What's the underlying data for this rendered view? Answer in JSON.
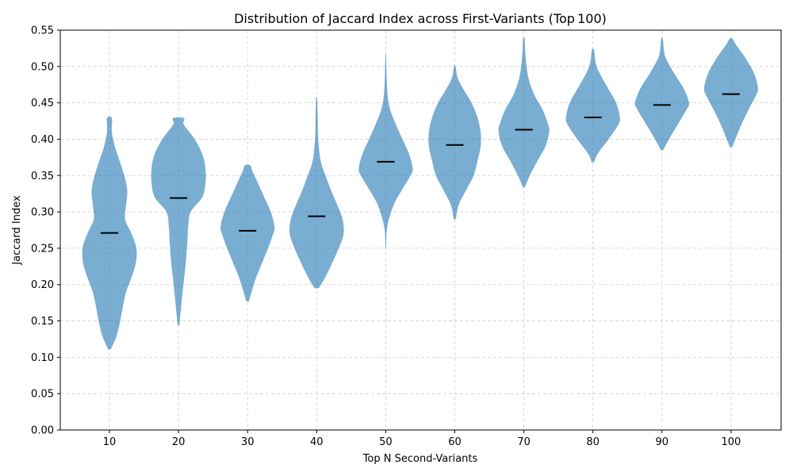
{
  "chart_data": {
    "type": "violin",
    "title": "Distribution of Jaccard Index across First-Variants (Top 100)",
    "xlabel": "Top N Second-Variants",
    "ylabel": "Jaccard Index",
    "ylim": [
      0,
      0.55
    ],
    "yticks": [
      "0.00",
      "0.05",
      "0.10",
      "0.15",
      "0.20",
      "0.25",
      "0.30",
      "0.35",
      "0.40",
      "0.45",
      "0.50",
      "0.55"
    ],
    "grid": true,
    "color": "#1f77b4",
    "categories": [
      "10",
      "20",
      "30",
      "40",
      "50",
      "60",
      "70",
      "80",
      "90",
      "100"
    ],
    "violins": [
      {
        "category": "10",
        "min": 0.111,
        "max": 0.429,
        "median": 0.271,
        "profile": [
          [
            0.111,
            0.05
          ],
          [
            0.13,
            0.27
          ],
          [
            0.15,
            0.4
          ],
          [
            0.17,
            0.5
          ],
          [
            0.19,
            0.62
          ],
          [
            0.21,
            0.82
          ],
          [
            0.23,
            0.98
          ],
          [
            0.25,
            1.0
          ],
          [
            0.27,
            0.82
          ],
          [
            0.29,
            0.58
          ],
          [
            0.31,
            0.62
          ],
          [
            0.33,
            0.66
          ],
          [
            0.35,
            0.55
          ],
          [
            0.37,
            0.38
          ],
          [
            0.39,
            0.2
          ],
          [
            0.41,
            0.09
          ],
          [
            0.429,
            0.09
          ]
        ]
      },
      {
        "category": "20",
        "min": 0.144,
        "max": 0.429,
        "median": 0.319,
        "profile": [
          [
            0.144,
            0.03
          ],
          [
            0.17,
            0.1
          ],
          [
            0.2,
            0.18
          ],
          [
            0.23,
            0.27
          ],
          [
            0.26,
            0.33
          ],
          [
            0.28,
            0.36
          ],
          [
            0.3,
            0.45
          ],
          [
            0.32,
            0.88
          ],
          [
            0.34,
            1.0
          ],
          [
            0.36,
            1.0
          ],
          [
            0.38,
            0.88
          ],
          [
            0.4,
            0.6
          ],
          [
            0.42,
            0.2
          ],
          [
            0.429,
            0.2
          ]
        ]
      },
      {
        "category": "30",
        "min": 0.177,
        "max": 0.364,
        "median": 0.274,
        "profile": [
          [
            0.177,
            0.05
          ],
          [
            0.19,
            0.15
          ],
          [
            0.21,
            0.32
          ],
          [
            0.23,
            0.54
          ],
          [
            0.25,
            0.76
          ],
          [
            0.27,
            0.95
          ],
          [
            0.28,
            1.0
          ],
          [
            0.3,
            0.86
          ],
          [
            0.32,
            0.62
          ],
          [
            0.34,
            0.38
          ],
          [
            0.356,
            0.18
          ],
          [
            0.364,
            0.1
          ]
        ]
      },
      {
        "category": "40",
        "min": 0.195,
        "max": 0.455,
        "median": 0.294,
        "profile": [
          [
            0.195,
            0.08
          ],
          [
            0.21,
            0.32
          ],
          [
            0.23,
            0.58
          ],
          [
            0.25,
            0.82
          ],
          [
            0.27,
            1.0
          ],
          [
            0.29,
            0.96
          ],
          [
            0.31,
            0.76
          ],
          [
            0.33,
            0.53
          ],
          [
            0.35,
            0.33
          ],
          [
            0.37,
            0.15
          ],
          [
            0.4,
            0.06
          ],
          [
            0.43,
            0.04
          ],
          [
            0.455,
            0.02
          ]
        ]
      },
      {
        "category": "50",
        "min": 0.25,
        "max": 0.516,
        "median": 0.369,
        "profile": [
          [
            0.25,
            0.01
          ],
          [
            0.28,
            0.06
          ],
          [
            0.31,
            0.3
          ],
          [
            0.33,
            0.6
          ],
          [
            0.35,
            0.92
          ],
          [
            0.36,
            1.0
          ],
          [
            0.38,
            0.86
          ],
          [
            0.4,
            0.62
          ],
          [
            0.42,
            0.38
          ],
          [
            0.44,
            0.17
          ],
          [
            0.46,
            0.07
          ],
          [
            0.49,
            0.03
          ],
          [
            0.516,
            0.01
          ]
        ]
      },
      {
        "category": "60",
        "min": 0.29,
        "max": 0.5,
        "median": 0.392,
        "profile": [
          [
            0.29,
            0.04
          ],
          [
            0.31,
            0.15
          ],
          [
            0.33,
            0.42
          ],
          [
            0.35,
            0.7
          ],
          [
            0.37,
            0.84
          ],
          [
            0.39,
            0.96
          ],
          [
            0.41,
            0.96
          ],
          [
            0.43,
            0.84
          ],
          [
            0.45,
            0.62
          ],
          [
            0.47,
            0.3
          ],
          [
            0.485,
            0.1
          ],
          [
            0.5,
            0.03
          ]
        ]
      },
      {
        "category": "70",
        "min": 0.334,
        "max": 0.538,
        "median": 0.413,
        "profile": [
          [
            0.334,
            0.04
          ],
          [
            0.35,
            0.22
          ],
          [
            0.37,
            0.5
          ],
          [
            0.39,
            0.8
          ],
          [
            0.41,
            0.94
          ],
          [
            0.42,
            0.9
          ],
          [
            0.44,
            0.7
          ],
          [
            0.46,
            0.4
          ],
          [
            0.48,
            0.2
          ],
          [
            0.5,
            0.1
          ],
          [
            0.52,
            0.05
          ],
          [
            0.538,
            0.03
          ]
        ]
      },
      {
        "category": "80",
        "min": 0.368,
        "max": 0.523,
        "median": 0.43,
        "profile": [
          [
            0.368,
            0.04
          ],
          [
            0.38,
            0.18
          ],
          [
            0.4,
            0.58
          ],
          [
            0.42,
            0.94
          ],
          [
            0.43,
            1.0
          ],
          [
            0.45,
            0.86
          ],
          [
            0.47,
            0.56
          ],
          [
            0.49,
            0.26
          ],
          [
            0.5,
            0.14
          ],
          [
            0.51,
            0.08
          ],
          [
            0.523,
            0.04
          ]
        ]
      },
      {
        "category": "90",
        "min": 0.385,
        "max": 0.538,
        "median": 0.447,
        "profile": [
          [
            0.385,
            0.04
          ],
          [
            0.4,
            0.26
          ],
          [
            0.42,
            0.58
          ],
          [
            0.44,
            0.9
          ],
          [
            0.45,
            1.0
          ],
          [
            0.47,
            0.8
          ],
          [
            0.49,
            0.46
          ],
          [
            0.51,
            0.16
          ],
          [
            0.52,
            0.08
          ],
          [
            0.538,
            0.03
          ]
        ]
      },
      {
        "category": "100",
        "min": 0.389,
        "max": 0.538,
        "median": 0.462,
        "profile": [
          [
            0.389,
            0.04
          ],
          [
            0.4,
            0.16
          ],
          [
            0.42,
            0.38
          ],
          [
            0.44,
            0.64
          ],
          [
            0.46,
            0.92
          ],
          [
            0.47,
            1.0
          ],
          [
            0.49,
            0.86
          ],
          [
            0.51,
            0.56
          ],
          [
            0.52,
            0.38
          ],
          [
            0.53,
            0.18
          ],
          [
            0.538,
            0.06
          ]
        ]
      }
    ]
  }
}
